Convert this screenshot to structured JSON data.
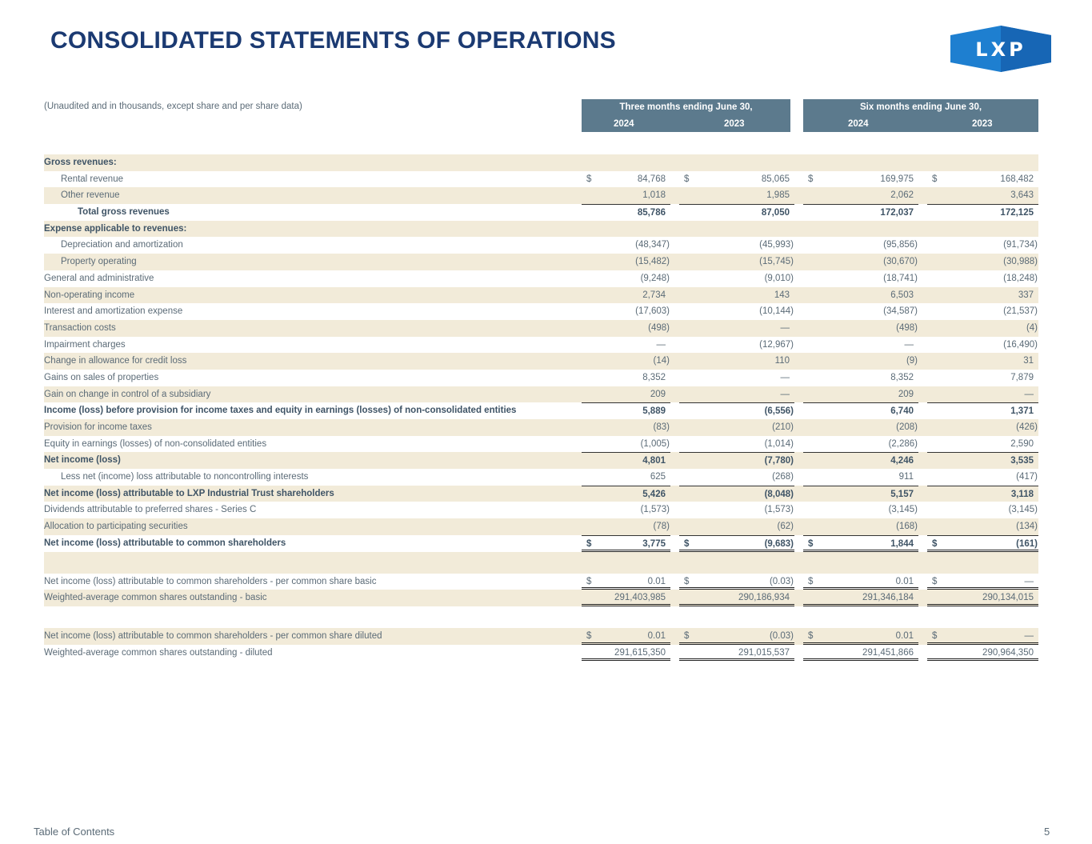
{
  "title": "CONSOLIDATED STATEMENTS OF OPERATIONS",
  "logo_text": "LXP",
  "colors": {
    "title": "#1b3a72",
    "header": "#5c7a8d",
    "band": "#f2ebd9",
    "logo": "#1e7fd0"
  },
  "note": "(Unaudited and in thousands, except share and per share data)",
  "headers": [
    {
      "period": "Three months ending June 30,",
      "years": [
        "2024",
        "2023"
      ]
    },
    {
      "period": "Six months ending June 30,",
      "years": [
        "2024",
        "2023"
      ]
    }
  ],
  "rows": [
    {
      "label": "Gross revenues:",
      "bold": true,
      "band": true,
      "values": [
        "",
        "",
        "",
        ""
      ]
    },
    {
      "label": "Rental revenue",
      "indent": 1,
      "dollar": true,
      "values": [
        "84,768",
        "85,065",
        "169,975",
        "168,482"
      ]
    },
    {
      "label": "Other revenue",
      "indent": 1,
      "band": true,
      "values": [
        "1,018",
        "1,985",
        "2,062",
        "3,643"
      ]
    },
    {
      "label": "Total gross revenues",
      "indent": 2,
      "bold": true,
      "top": true,
      "values": [
        "85,786",
        "87,050",
        "172,037",
        "172,125"
      ]
    },
    {
      "label": "Expense applicable to revenues:",
      "bold": true,
      "band": true,
      "values": [
        "",
        "",
        "",
        ""
      ]
    },
    {
      "label": "Depreciation and amortization",
      "indent": 1,
      "values": [
        "(48,347)",
        "(45,993)",
        "(95,856)",
        "(91,734)"
      ]
    },
    {
      "label": "Property operating",
      "indent": 1,
      "band": true,
      "values": [
        "(15,482)",
        "(15,745)",
        "(30,670)",
        "(30,988)"
      ]
    },
    {
      "label": "General and administrative",
      "values": [
        "(9,248)",
        "(9,010)",
        "(18,741)",
        "(18,248)"
      ]
    },
    {
      "label": "Non-operating income",
      "band": true,
      "values": [
        "2,734",
        "143",
        "6,503",
        "337"
      ]
    },
    {
      "label": "Interest and amortization expense",
      "values": [
        "(17,603)",
        "(10,144)",
        "(34,587)",
        "(21,537)"
      ]
    },
    {
      "label": "Transaction costs",
      "band": true,
      "values": [
        "(498)",
        "—",
        "(498)",
        "(4)"
      ]
    },
    {
      "label": "Impairment charges",
      "values": [
        "—",
        "(12,967)",
        "—",
        "(16,490)"
      ]
    },
    {
      "label": "Change in allowance for credit loss",
      "band": true,
      "values": [
        "(14)",
        "110",
        "(9)",
        "31"
      ]
    },
    {
      "label": "Gains on sales of properties",
      "values": [
        "8,352",
        "—",
        "8,352",
        "7,879"
      ]
    },
    {
      "label": "Gain on change in control of a subsidiary",
      "band": true,
      "values": [
        "209",
        "—",
        "209",
        "—"
      ]
    },
    {
      "label": "Income (loss) before provision for income taxes and equity in earnings (losses) of non-consolidated entities",
      "bold": true,
      "top": true,
      "values": [
        "5,889",
        "(6,556)",
        "6,740",
        "1,371"
      ]
    },
    {
      "label": "Provision for income taxes",
      "band": true,
      "values": [
        "(83)",
        "(210)",
        "(208)",
        "(426)"
      ]
    },
    {
      "label": "Equity in earnings (losses) of non-consolidated entities",
      "values": [
        "(1,005)",
        "(1,014)",
        "(2,286)",
        "2,590"
      ]
    },
    {
      "label": "Net income (loss)",
      "bold": true,
      "band": true,
      "top": true,
      "values": [
        "4,801",
        "(7,780)",
        "4,246",
        "3,535"
      ]
    },
    {
      "label": "Less net (income) loss attributable to noncontrolling interests",
      "indent": 1,
      "values": [
        "625",
        "(268)",
        "911",
        "(417)"
      ]
    },
    {
      "label": "Net income (loss) attributable to LXP Industrial Trust shareholders",
      "bold": true,
      "band": true,
      "top": true,
      "values": [
        "5,426",
        "(8,048)",
        "5,157",
        "3,118"
      ]
    },
    {
      "label": "Dividends attributable to preferred shares - Series C",
      "values": [
        "(1,573)",
        "(1,573)",
        "(3,145)",
        "(3,145)"
      ]
    },
    {
      "label": "Allocation to participating securities",
      "band": true,
      "values": [
        "(78)",
        "(62)",
        "(168)",
        "(134)"
      ]
    },
    {
      "label": "Net income (loss) attributable to common shareholders",
      "bold": true,
      "top": true,
      "dbl": true,
      "dollar": true,
      "values": [
        "3,775",
        "(9,683)",
        "1,844",
        "(161)"
      ]
    },
    {
      "spacer": true,
      "band": true
    },
    {
      "label": "Net income (loss) attributable to common shareholders - per common share basic",
      "dollar": true,
      "dbl": true,
      "values": [
        "0.01",
        "(0.03)",
        "0.01",
        "—"
      ]
    },
    {
      "label": "Weighted-average common shares outstanding - basic",
      "band": true,
      "dbl": true,
      "values": [
        "291,403,985",
        "290,186,934",
        "291,346,184",
        "290,134,015"
      ]
    },
    {
      "spacer": true
    },
    {
      "label": "Net income (loss) attributable to common shareholders - per common share diluted",
      "band": true,
      "dollar": true,
      "dbl": true,
      "values": [
        "0.01",
        "(0.03)",
        "0.01",
        "—"
      ]
    },
    {
      "label": "Weighted-average common shares outstanding - diluted",
      "dbl": true,
      "values": [
        "291,615,350",
        "291,015,537",
        "291,451,866",
        "290,964,350"
      ]
    }
  ],
  "currency_symbol": "$",
  "footer": {
    "toc": "Table of Contents",
    "page": "5"
  }
}
